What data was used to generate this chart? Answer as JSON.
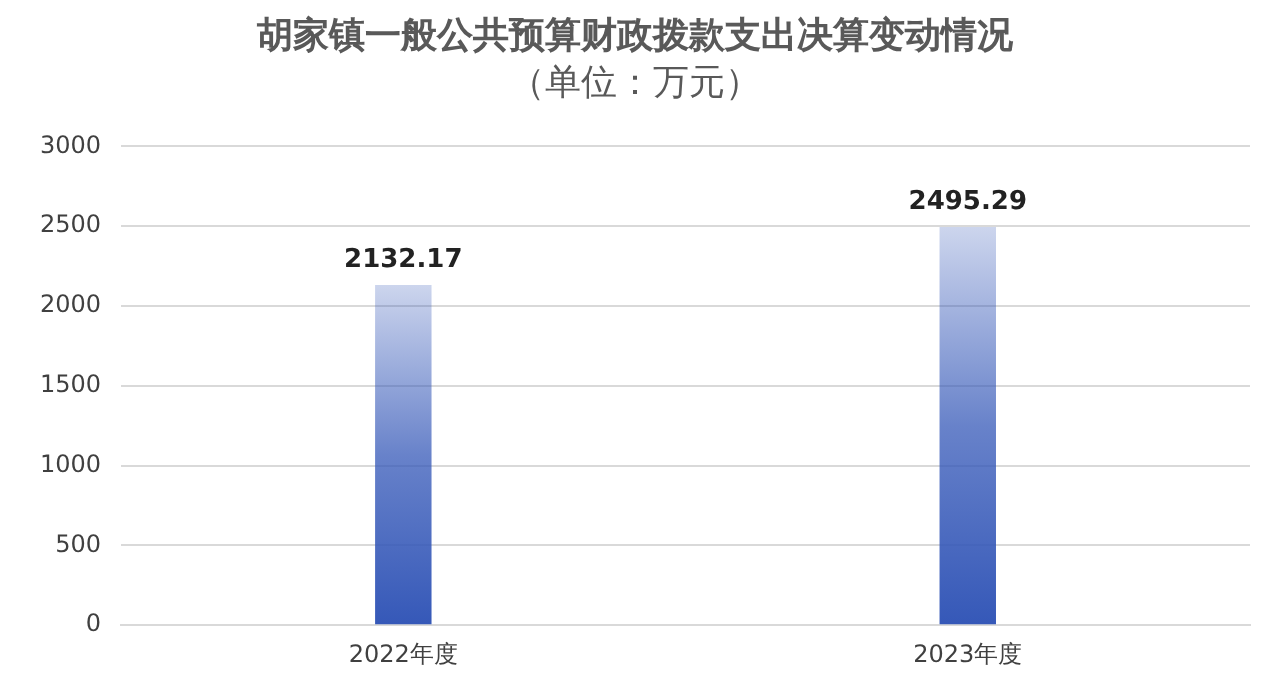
{
  "chart_data": {
    "type": "bar",
    "title": "胡家镇一般公共预算财政拨款支出决算变动情况",
    "subtitle": "（单位：万元）",
    "categories": [
      "2022年度",
      "2023年度"
    ],
    "values": [
      2132.17,
      2495.29
    ],
    "color": "#3558b8",
    "ylim": [
      0,
      3000
    ],
    "yticks": [
      0,
      500,
      1000,
      1500,
      2000,
      2500,
      3000
    ],
    "grid": "y",
    "data_labels": true,
    "legend": false
  }
}
